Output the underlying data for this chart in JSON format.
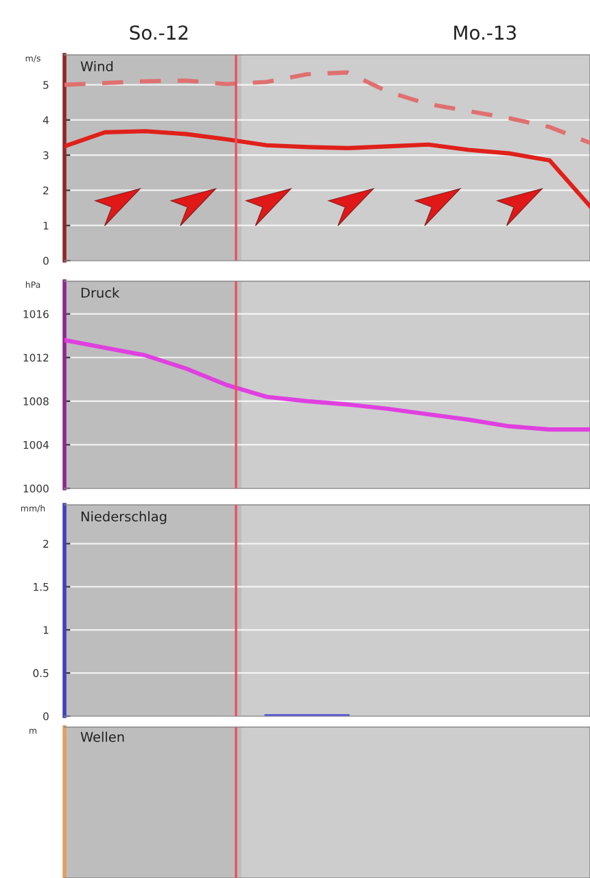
{
  "chart_data": [
    {
      "type": "line",
      "title": "Wind",
      "ylabel": "m/s",
      "annotations": [
        "So.-12",
        "Mo.-13"
      ],
      "categories": [
        null,
        null,
        null,
        null,
        null,
        null,
        null,
        null,
        null,
        null,
        null,
        null,
        null,
        null
      ],
      "ylim": [
        0,
        5.85
      ],
      "yticks": [
        0,
        1,
        2,
        3,
        4,
        5
      ],
      "grid": "y",
      "series": [
        {
          "color": "#e0201a",
          "line_style": "solid",
          "values": [
            3.25,
            3.65,
            3.68,
            3.6,
            3.45,
            3.28,
            3.23,
            3.2,
            3.25,
            3.3,
            3.15,
            3.05,
            2.85,
            1.55
          ]
        },
        {
          "color": "#e07070",
          "line_style": "dashed",
          "values": [
            5.0,
            5.05,
            5.1,
            5.12,
            5.02,
            5.08,
            5.3,
            5.35,
            4.8,
            4.45,
            4.25,
            4.05,
            3.8,
            3.35
          ]
        }
      ]
    },
    {
      "type": "line",
      "title": "Druck",
      "ylabel": "hPa",
      "categories": [
        null,
        null,
        null,
        null,
        null,
        null,
        null,
        null,
        null,
        null,
        null,
        null,
        null,
        null
      ],
      "ylim": [
        1000,
        1019
      ],
      "yticks": [
        1000,
        1004,
        1008,
        1012,
        1016
      ],
      "grid": "y",
      "series": [
        {
          "color": "#e040e0",
          "line_style": "solid",
          "values": [
            1013.6,
            1012.9,
            1012.2,
            1011.0,
            1009.5,
            1008.4,
            1008.0,
            1007.7,
            1007.3,
            1006.8,
            1006.3,
            1005.7,
            1005.4,
            1005.4
          ]
        }
      ]
    },
    {
      "type": "line",
      "title": "Niederschlag",
      "ylabel": "mm/h",
      "categories": [
        null,
        null,
        null,
        null,
        null,
        null,
        null,
        null,
        null,
        null,
        null,
        null,
        null,
        null
      ],
      "ylim": [
        0,
        2.45
      ],
      "yticks": [
        0,
        0.5,
        1,
        1.5,
        2
      ],
      "grid": "y",
      "series": [
        {
          "color": "#6060d0",
          "line_style": "solid",
          "values": [
            null,
            null,
            null,
            null,
            null,
            0,
            0,
            0,
            null,
            null,
            null,
            null,
            null,
            null
          ]
        }
      ]
    },
    {
      "type": "other",
      "title": "Wellen",
      "ylabel": "m",
      "categories": [
        null,
        null,
        null,
        null,
        null,
        null,
        null,
        null,
        null,
        null,
        null,
        null,
        null,
        null
      ]
    }
  ]
}
